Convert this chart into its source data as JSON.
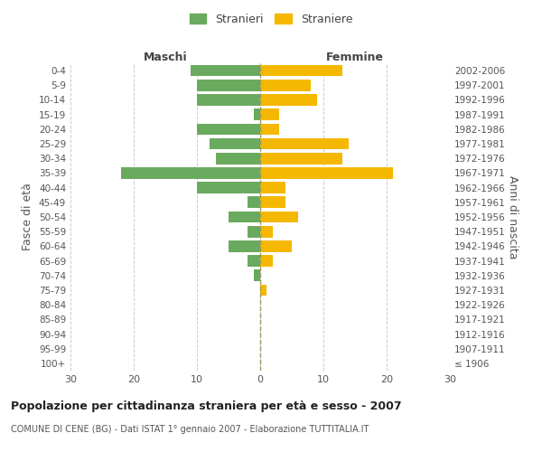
{
  "age_groups": [
    "100+",
    "95-99",
    "90-94",
    "85-89",
    "80-84",
    "75-79",
    "70-74",
    "65-69",
    "60-64",
    "55-59",
    "50-54",
    "45-49",
    "40-44",
    "35-39",
    "30-34",
    "25-29",
    "20-24",
    "15-19",
    "10-14",
    "5-9",
    "0-4"
  ],
  "birth_years": [
    "≤ 1906",
    "1907-1911",
    "1912-1916",
    "1917-1921",
    "1922-1926",
    "1927-1931",
    "1932-1936",
    "1937-1941",
    "1942-1946",
    "1947-1951",
    "1952-1956",
    "1957-1961",
    "1962-1966",
    "1967-1971",
    "1972-1976",
    "1977-1981",
    "1982-1986",
    "1987-1991",
    "1992-1996",
    "1997-2001",
    "2002-2006"
  ],
  "maschi": [
    0,
    0,
    0,
    0,
    0,
    0,
    1,
    2,
    5,
    2,
    5,
    2,
    10,
    22,
    7,
    8,
    10,
    1,
    10,
    10,
    11
  ],
  "femmine": [
    0,
    0,
    0,
    0,
    0,
    1,
    0,
    2,
    5,
    2,
    6,
    4,
    4,
    21,
    13,
    14,
    3,
    3,
    9,
    8,
    13
  ],
  "maschi_color": "#6aaa5e",
  "femmine_color": "#f5b800",
  "background_color": "#ffffff",
  "grid_color": "#cccccc",
  "title": "Popolazione per cittadinanza straniera per età e sesso - 2007",
  "subtitle": "COMUNE DI CENE (BG) - Dati ISTAT 1° gennaio 2007 - Elaborazione TUTTITALIA.IT",
  "ylabel_left": "Fasce di età",
  "ylabel_right": "Anni di nascita",
  "legend_stranieri": "Stranieri",
  "legend_straniere": "Straniere",
  "xlim": 30,
  "header_maschi": "Maschi",
  "header_femmine": "Femmine"
}
